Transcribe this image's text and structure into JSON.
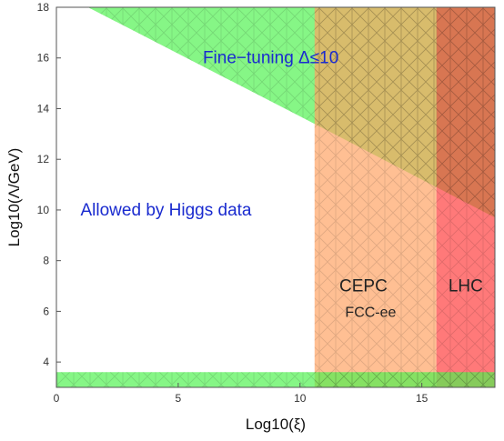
{
  "chart_data": {
    "type": "area",
    "xlabel": "Log10(ξ)",
    "ylabel": "Log10(Λ/GeV)",
    "xlim": [
      0,
      18
    ],
    "ylim": [
      3,
      18
    ],
    "x_ticks": [
      0,
      5,
      10,
      15
    ],
    "y_ticks": [
      4,
      6,
      8,
      10,
      12,
      14,
      16,
      18
    ],
    "regions": [
      {
        "name": "Fine-tuning Δ≤10",
        "color": "#4cf24c",
        "polygon": [
          [
            1.3,
            18
          ],
          [
            18,
            18
          ],
          [
            18,
            9.7
          ],
          [
            15.6,
            10.9
          ],
          [
            10.6,
            13.4
          ]
        ]
      },
      {
        "name": "CEPC / FCC-ee",
        "color": "#ffa060",
        "polygon": [
          [
            10.6,
            3
          ],
          [
            15.6,
            3
          ],
          [
            15.6,
            18
          ],
          [
            10.6,
            18
          ]
        ]
      },
      {
        "name": "LHC",
        "color": "#ff3a3a",
        "polygon": [
          [
            15.6,
            3
          ],
          [
            18,
            3
          ],
          [
            18,
            18
          ],
          [
            15.6,
            18
          ]
        ]
      },
      {
        "name": "Higgs data lower band",
        "color": "#4cf24c",
        "polygon": [
          [
            0,
            3
          ],
          [
            18,
            3
          ],
          [
            18,
            3.6
          ],
          [
            0,
            3.6
          ]
        ]
      }
    ],
    "annotations": [
      {
        "text": "Fine−tuning Δ≤10",
        "x": 8.8,
        "y": 16.0,
        "color": "#1a2bcf",
        "size": "large"
      },
      {
        "text": "Allowed by Higgs data",
        "x": 4.5,
        "y": 10.0,
        "color": "#1a2bcf",
        "size": "large"
      },
      {
        "text": "CEPC",
        "x": 12.6,
        "y": 7.0,
        "color": "#222222",
        "size": "large"
      },
      {
        "text": "FCC-ee",
        "x": 12.9,
        "y": 6.0,
        "color": "#222222",
        "size": "small"
      },
      {
        "text": "LHC",
        "x": 16.8,
        "y": 7.0,
        "color": "#222222",
        "size": "large"
      }
    ]
  }
}
